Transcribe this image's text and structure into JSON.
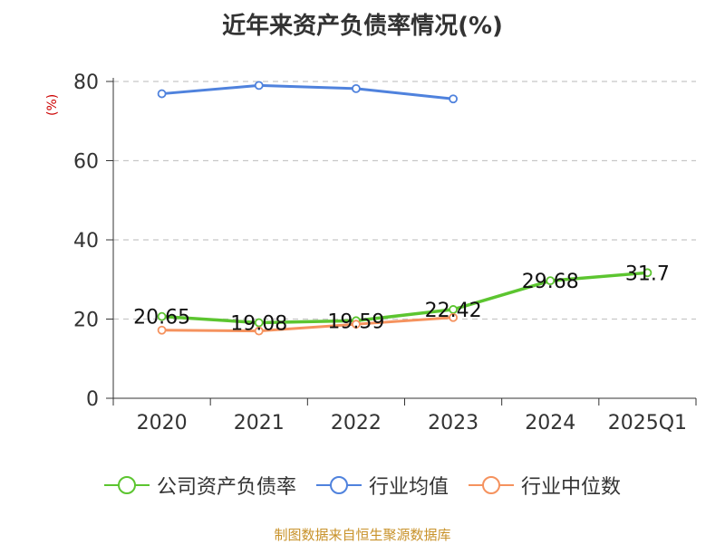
{
  "chart_data": {
    "type": "line",
    "title": "近年来资产负债率情况(%)",
    "ylabel": "(%)",
    "categories": [
      "2020",
      "2021",
      "2022",
      "2023",
      "2024",
      "2025Q1"
    ],
    "ylim": [
      0,
      80
    ],
    "yticks": [
      0,
      20,
      40,
      60,
      80
    ],
    "grid": true,
    "legend_position": "bottom",
    "series": [
      {
        "name": "公司资产负债率",
        "color": "#5cc530",
        "values": [
          20.65,
          19.08,
          19.59,
          22.42,
          29.68,
          31.7
        ],
        "labels": [
          "20.65",
          "19.08",
          "19.59",
          "22.42",
          "29.68",
          "31.7"
        ]
      },
      {
        "name": "行业均值",
        "color": "#4f82dd",
        "values": [
          76.9,
          79.0,
          78.2,
          75.6,
          null,
          null
        ]
      },
      {
        "name": "行业中位数",
        "color": "#f5925e",
        "values": [
          17.2,
          17.0,
          18.7,
          20.4,
          null,
          null
        ]
      }
    ]
  },
  "source": "制图数据来自恒生聚源数据库"
}
